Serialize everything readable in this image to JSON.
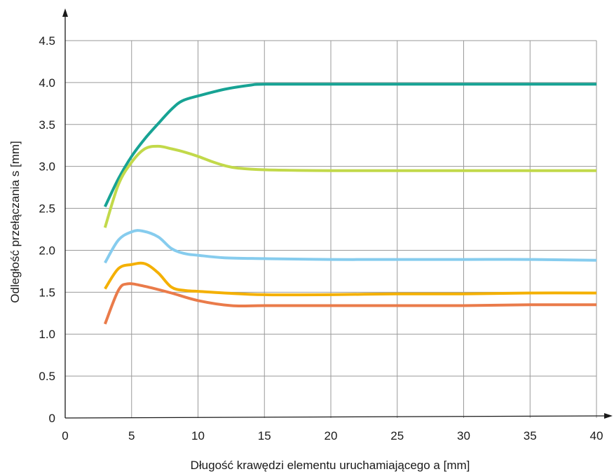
{
  "chart_data": {
    "type": "line",
    "title": "",
    "xlabel": "Długość krawędzi elementu uruchamiającego a [mm]",
    "ylabel": "Odległość przełączania s [mm]",
    "xlim": [
      0,
      40
    ],
    "ylim": [
      0,
      4.5
    ],
    "x_ticks": [
      0,
      5,
      10,
      15,
      20,
      25,
      30,
      35,
      40
    ],
    "y_ticks": [
      0,
      0.5,
      1.0,
      1.5,
      2.0,
      2.5,
      3.0,
      3.5,
      4.0,
      4.5
    ],
    "x_tick_labels": [
      "0",
      "5",
      "10",
      "15",
      "20",
      "25",
      "30",
      "35",
      "40"
    ],
    "y_tick_labels": [
      "0",
      "0.5",
      "1.0",
      "1.5",
      "2.0",
      "2.5",
      "3.0",
      "3.5",
      "4.0",
      "4.5"
    ],
    "grid": true,
    "series": [
      {
        "color": "#17a394",
        "x": [
          3,
          4,
          5,
          6,
          7,
          8,
          8.8,
          10,
          12,
          14,
          15,
          20,
          25,
          30,
          35,
          40
        ],
        "y": [
          2.52,
          2.85,
          3.12,
          3.33,
          3.51,
          3.68,
          3.78,
          3.84,
          3.92,
          3.97,
          3.98,
          3.98,
          3.98,
          3.98,
          3.98,
          3.98
        ]
      },
      {
        "color": "#c2d94a",
        "x": [
          3,
          4,
          5,
          6,
          7,
          8,
          9,
          10,
          11,
          12,
          13,
          15,
          20,
          25,
          30,
          35,
          40
        ],
        "y": [
          2.27,
          2.78,
          3.05,
          3.21,
          3.24,
          3.21,
          3.17,
          3.12,
          3.06,
          3.01,
          2.98,
          2.96,
          2.95,
          2.95,
          2.95,
          2.95,
          2.95
        ]
      },
      {
        "color": "#86ccee",
        "x": [
          3,
          4,
          5,
          5.8,
          7,
          8,
          9,
          10,
          12,
          15,
          20,
          25,
          30,
          35,
          40
        ],
        "y": [
          1.85,
          2.12,
          2.22,
          2.23,
          2.16,
          2.02,
          1.96,
          1.94,
          1.91,
          1.9,
          1.89,
          1.89,
          1.89,
          1.89,
          1.88
        ]
      },
      {
        "color": "#f4b000",
        "x": [
          3,
          4,
          5,
          6,
          7,
          8,
          9,
          10,
          12,
          15,
          20,
          25,
          30,
          35,
          40
        ],
        "y": [
          1.54,
          1.78,
          1.83,
          1.84,
          1.73,
          1.56,
          1.52,
          1.51,
          1.49,
          1.47,
          1.47,
          1.48,
          1.48,
          1.49,
          1.49
        ]
      },
      {
        "color": "#ea7b4a",
        "x": [
          3,
          4,
          4.7,
          6,
          8,
          10,
          12.5,
          15,
          20,
          25,
          30,
          35,
          40
        ],
        "y": [
          1.12,
          1.52,
          1.6,
          1.57,
          1.49,
          1.4,
          1.34,
          1.34,
          1.34,
          1.34,
          1.34,
          1.35,
          1.35
        ]
      }
    ]
  }
}
